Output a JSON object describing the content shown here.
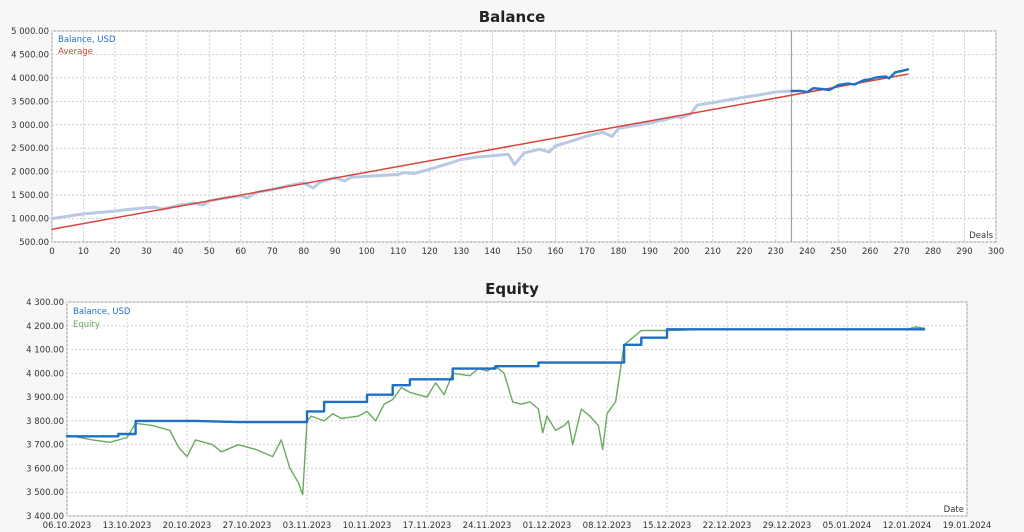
{
  "colors": {
    "balance": "#1f6fc5",
    "balance_light": "#b7c9e3",
    "average": "#d9443a",
    "equity": "#6aaa5f",
    "grid": "#cfcfcf",
    "plot_bg": "#ffffff"
  },
  "chart_data": [
    {
      "type": "line",
      "title": "Balance",
      "xlabel": "Deals",
      "ylabel": "",
      "xlim": [
        0,
        300
      ],
      "ylim": [
        500,
        5000
      ],
      "x_ticks": [
        0,
        10,
        20,
        30,
        40,
        50,
        60,
        70,
        80,
        90,
        100,
        110,
        120,
        130,
        140,
        150,
        160,
        170,
        180,
        190,
        200,
        210,
        220,
        230,
        240,
        250,
        260,
        270,
        280,
        290,
        300
      ],
      "y_ticks": [
        500,
        1000,
        1500,
        2000,
        2500,
        3000,
        3500,
        4000,
        4500,
        5000
      ],
      "y_tick_labels": [
        "500.00",
        "1 000.00",
        "1 500.00",
        "2 000.00",
        "2 500.00",
        "3 000.00",
        "3 500.00",
        "4 000.00",
        "4 500.00",
        "5 000.00"
      ],
      "divider_x": 235,
      "grid": true,
      "legend": "top-left",
      "series": [
        {
          "name": "Balance, USD",
          "segment": "history",
          "x": [
            0,
            5,
            10,
            15,
            20,
            25,
            30,
            33,
            35,
            40,
            45,
            48,
            50,
            55,
            60,
            62,
            65,
            70,
            75,
            80,
            83,
            85,
            88,
            90,
            93,
            95,
            100,
            105,
            110,
            112,
            115,
            120,
            125,
            130,
            135,
            140,
            145,
            147,
            150,
            155,
            158,
            160,
            165,
            170,
            175,
            178,
            180,
            185,
            190,
            195,
            198,
            200,
            203,
            205,
            210,
            215,
            220,
            225,
            230,
            235
          ],
          "y": [
            1000,
            1050,
            1100,
            1130,
            1160,
            1200,
            1230,
            1240,
            1200,
            1280,
            1330,
            1290,
            1380,
            1440,
            1480,
            1440,
            1560,
            1620,
            1700,
            1760,
            1650,
            1770,
            1830,
            1870,
            1800,
            1880,
            1900,
            1920,
            1940,
            1980,
            1960,
            2050,
            2150,
            2260,
            2310,
            2340,
            2370,
            2150,
            2400,
            2480,
            2420,
            2550,
            2650,
            2760,
            2840,
            2750,
            2920,
            2980,
            3040,
            3110,
            3170,
            3150,
            3230,
            3420,
            3470,
            3530,
            3590,
            3640,
            3700,
            3720
          ]
        },
        {
          "name": "Balance, USD",
          "segment": "forward",
          "x": [
            235,
            238,
            240,
            242,
            245,
            247,
            250,
            253,
            255,
            258,
            260,
            262,
            265,
            266,
            268,
            270,
            272
          ],
          "y": [
            3720,
            3720,
            3700,
            3780,
            3760,
            3740,
            3850,
            3880,
            3860,
            3950,
            3970,
            4010,
            4030,
            3990,
            4120,
            4150,
            4180
          ]
        },
        {
          "name": "Average",
          "x": [
            0,
            272
          ],
          "y": [
            770,
            4080
          ]
        }
      ]
    },
    {
      "type": "line",
      "title": "Equity",
      "xlabel": "Date",
      "ylabel": "",
      "x_unit": "days from 06.10.2023",
      "xlim": [
        0,
        105
      ],
      "ylim": [
        3400,
        4300
      ],
      "x_tick_labels": [
        "06.10.2023",
        "13.10.2023",
        "20.10.2023",
        "27.10.2023",
        "03.11.2023",
        "10.11.2023",
        "17.11.2023",
        "24.11.2023",
        "01.12.2023",
        "08.12.2023",
        "15.12.2023",
        "22.12.2023",
        "29.12.2023",
        "05.01.2024",
        "12.01.2024",
        "19.01.2024"
      ],
      "y_ticks": [
        3400,
        3500,
        3600,
        3700,
        3800,
        3900,
        4000,
        4100,
        4200,
        4300
      ],
      "y_tick_labels": [
        "3 400.00",
        "3 500.00",
        "3 600.00",
        "3 700.00",
        "3 800.00",
        "3 900.00",
        "4 000.00",
        "4 100.00",
        "4 200.00",
        "4 300.00"
      ],
      "grid": true,
      "legend": "top-left",
      "series": [
        {
          "name": "Balance, USD",
          "x": [
            0,
            6,
            6,
            8,
            8,
            10,
            15,
            20,
            25,
            28,
            28,
            30,
            30,
            35,
            35,
            38,
            38,
            40,
            40,
            45,
            45,
            50,
            50,
            55,
            55,
            60,
            60,
            65,
            65,
            67,
            67,
            70,
            70,
            100
          ],
          "y": [
            3735,
            3735,
            3745,
            3745,
            3800,
            3800,
            3800,
            3795,
            3795,
            3795,
            3840,
            3840,
            3880,
            3880,
            3910,
            3910,
            3950,
            3950,
            3975,
            3975,
            4020,
            4020,
            4030,
            4030,
            4045,
            4045,
            4045,
            4045,
            4120,
            4120,
            4150,
            4150,
            4185,
            4185
          ]
        },
        {
          "name": "Equity",
          "x": [
            0,
            3,
            5,
            7,
            8,
            10,
            12,
            13,
            14,
            15,
            17,
            18,
            20,
            22,
            24,
            25,
            26,
            27,
            27.5,
            28,
            28.5,
            30,
            31,
            32,
            34,
            35,
            36,
            37,
            38,
            39,
            40,
            42,
            43,
            44,
            45,
            47,
            48,
            49,
            50,
            51,
            52,
            53,
            54,
            55,
            55.5,
            56,
            57,
            58,
            58.5,
            59,
            60,
            61,
            62,
            62.5,
            63,
            64,
            65,
            66,
            67,
            70,
            75,
            80,
            85,
            90,
            95,
            98,
            99,
            100
          ],
          "y": [
            3740,
            3720,
            3710,
            3730,
            3790,
            3780,
            3760,
            3690,
            3650,
            3720,
            3700,
            3670,
            3700,
            3680,
            3650,
            3720,
            3600,
            3540,
            3490,
            3800,
            3820,
            3800,
            3830,
            3810,
            3820,
            3840,
            3800,
            3870,
            3890,
            3940,
            3920,
            3900,
            3960,
            3910,
            4000,
            3990,
            4020,
            4010,
            4030,
            4000,
            3880,
            3870,
            3880,
            3850,
            3750,
            3820,
            3760,
            3780,
            3800,
            3700,
            3850,
            3820,
            3780,
            3680,
            3830,
            3880,
            4120,
            4150,
            4180,
            4180,
            4185,
            4185,
            4185,
            4185,
            4185,
            4185,
            4195,
            4190
          ]
        }
      ]
    }
  ]
}
